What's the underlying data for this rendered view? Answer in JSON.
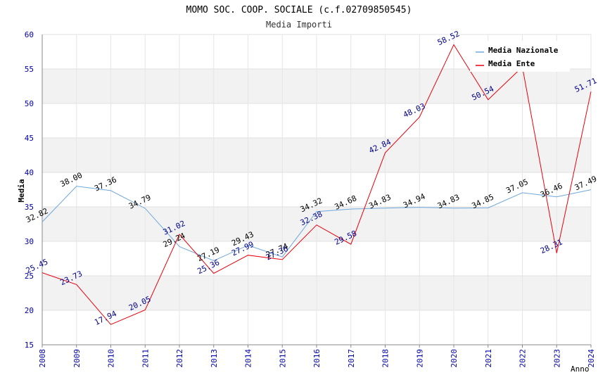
{
  "chart_data": {
    "type": "line",
    "title": "MOMO SOC. COOP. SOCIALE (c.f.02709850545)",
    "subtitle": "Media Importi",
    "xlabel": "Anno",
    "ylabel": "Media",
    "ylim": [
      15,
      60
    ],
    "yticks": [
      15,
      20,
      25,
      30,
      35,
      40,
      45,
      50,
      55,
      60
    ],
    "x": [
      "2008",
      "2009",
      "2010",
      "2011",
      "2012",
      "2013",
      "2014",
      "2015",
      "2016",
      "2017",
      "2018",
      "2019",
      "2020",
      "2021",
      "2022",
      "2023",
      "2024"
    ],
    "grid": true,
    "legend_position": "top-right",
    "series": [
      {
        "name": "Media Nazionale",
        "color": "#6fa8dc",
        "label_color": "#000000",
        "values": [
          32.82,
          38.0,
          37.36,
          34.79,
          29.24,
          27.19,
          29.43,
          27.74,
          34.32,
          34.68,
          34.83,
          34.94,
          34.83,
          34.85,
          37.05,
          36.46,
          37.49
        ],
        "labels": [
          "32.82",
          "38.00",
          "37.36",
          "34.79",
          "29.24",
          "27.19",
          "29.43",
          "27.74",
          "34.32",
          "34.68",
          "34.83",
          "34.94",
          "34.83",
          "34.85",
          "37.05",
          "36.46",
          "37.49"
        ]
      },
      {
        "name": "Media Ente",
        "color": "#e8000b",
        "label_color": "#00008b",
        "values": [
          25.45,
          23.73,
          17.94,
          20.05,
          31.02,
          25.36,
          27.99,
          27.36,
          32.38,
          29.58,
          42.84,
          48.03,
          58.52,
          50.54,
          55.3,
          28.31,
          51.71
        ],
        "labels": [
          "25.45",
          "23.73",
          "17.94",
          "20.05",
          "31.02",
          "25.36",
          "27.99",
          "27.36",
          "32.38",
          "29.58",
          "42.84",
          "48.03",
          "58.52",
          "50.54",
          "",
          "28.31",
          "51.71"
        ]
      }
    ]
  }
}
